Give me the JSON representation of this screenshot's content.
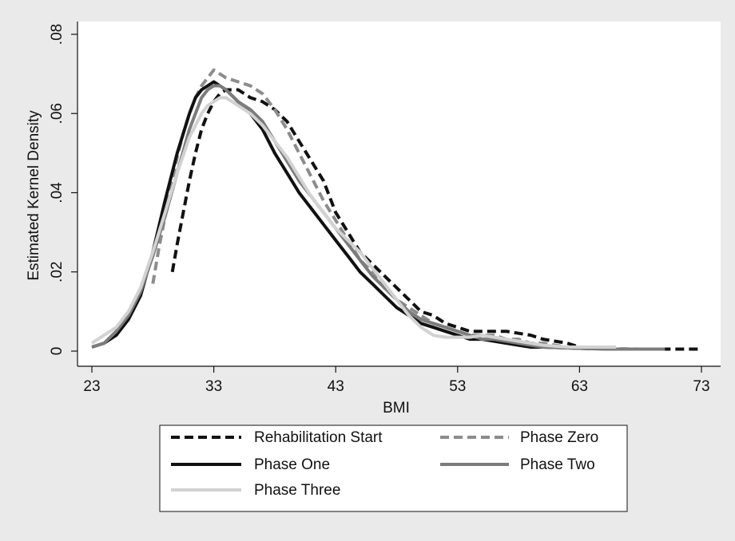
{
  "chart_data": {
    "type": "line",
    "title": "",
    "xlabel": "BMI",
    "ylabel": "Estimated Kernel Density",
    "xlim": [
      23,
      73
    ],
    "ylim": [
      0,
      0.08
    ],
    "xticks": [
      {
        "value": 23,
        "label": "23"
      },
      {
        "value": 33,
        "label": "33"
      },
      {
        "value": 43,
        "label": "43"
      },
      {
        "value": 53,
        "label": "53"
      },
      {
        "value": 63,
        "label": "63"
      },
      {
        "value": 73,
        "label": "73"
      }
    ],
    "yticks": [
      {
        "value": 0,
        "label": "0"
      },
      {
        "value": 0.02,
        "label": ".02"
      },
      {
        "value": 0.04,
        "label": ".04"
      },
      {
        "value": 0.06,
        "label": ".06"
      },
      {
        "value": 0.08,
        "label": ".08"
      }
    ],
    "grid": false,
    "legend_position": "bottom",
    "series": [
      {
        "name": "Rehabilitation Start",
        "color": "#111111",
        "dash": "dashed",
        "points": [
          [
            29.6,
            0.02
          ],
          [
            30.0,
            0.027
          ],
          [
            30.5,
            0.035
          ],
          [
            31.0,
            0.043
          ],
          [
            31.5,
            0.05
          ],
          [
            32.0,
            0.056
          ],
          [
            32.5,
            0.06
          ],
          [
            33.0,
            0.063
          ],
          [
            33.5,
            0.065
          ],
          [
            34.0,
            0.066
          ],
          [
            34.5,
            0.066
          ],
          [
            35.0,
            0.066
          ],
          [
            35.5,
            0.065
          ],
          [
            36.0,
            0.064
          ],
          [
            37.0,
            0.063
          ],
          [
            38.0,
            0.061
          ],
          [
            39.0,
            0.058
          ],
          [
            40.0,
            0.053
          ],
          [
            41.0,
            0.048
          ],
          [
            42.0,
            0.043
          ],
          [
            43.0,
            0.035
          ],
          [
            44.0,
            0.03
          ],
          [
            45.0,
            0.025
          ],
          [
            46.0,
            0.022
          ],
          [
            47.0,
            0.019
          ],
          [
            48.0,
            0.016
          ],
          [
            49.0,
            0.013
          ],
          [
            50.0,
            0.01
          ],
          [
            51.0,
            0.009
          ],
          [
            52.0,
            0.007
          ],
          [
            53.0,
            0.006
          ],
          [
            54.0,
            0.005
          ],
          [
            55.0,
            0.005
          ],
          [
            56.0,
            0.005
          ],
          [
            57.0,
            0.005
          ],
          [
            58.0,
            0.0045
          ],
          [
            59.0,
            0.004
          ],
          [
            60.0,
            0.003
          ],
          [
            61.0,
            0.0025
          ],
          [
            62.0,
            0.002
          ],
          [
            63.0,
            0.001
          ],
          [
            64.0,
            0.001
          ],
          [
            66.0,
            0.0005
          ],
          [
            68.0,
            0.0005
          ],
          [
            70.0,
            0.0005
          ],
          [
            73.0,
            0.0005
          ]
        ]
      },
      {
        "name": "Phase Zero",
        "color": "#8c8c8c",
        "dash": "dashed",
        "points": [
          [
            28.0,
            0.017
          ],
          [
            28.5,
            0.026
          ],
          [
            29.0,
            0.034
          ],
          [
            29.5,
            0.042
          ],
          [
            30.0,
            0.049
          ],
          [
            30.5,
            0.055
          ],
          [
            31.0,
            0.06
          ],
          [
            31.5,
            0.064
          ],
          [
            32.0,
            0.067
          ],
          [
            32.5,
            0.069
          ],
          [
            33.0,
            0.071
          ],
          [
            33.5,
            0.07
          ],
          [
            34.0,
            0.069
          ],
          [
            35.0,
            0.068
          ],
          [
            36.0,
            0.067
          ],
          [
            37.0,
            0.065
          ],
          [
            38.0,
            0.061
          ],
          [
            39.0,
            0.056
          ],
          [
            40.0,
            0.05
          ],
          [
            41.0,
            0.044
          ],
          [
            42.0,
            0.038
          ],
          [
            43.0,
            0.033
          ],
          [
            44.0,
            0.028
          ],
          [
            45.0,
            0.023
          ],
          [
            46.0,
            0.02
          ],
          [
            47.0,
            0.016
          ],
          [
            48.0,
            0.013
          ],
          [
            49.0,
            0.011
          ],
          [
            50.0,
            0.009
          ],
          [
            51.0,
            0.007
          ],
          [
            52.0,
            0.006
          ],
          [
            53.0,
            0.005
          ],
          [
            54.0,
            0.004
          ],
          [
            55.0,
            0.004
          ],
          [
            56.0,
            0.004
          ],
          [
            57.0,
            0.003
          ],
          [
            58.0,
            0.003
          ],
          [
            59.0,
            0.002
          ],
          [
            60.0,
            0.002
          ],
          [
            62.0,
            0.001
          ],
          [
            64.0,
            0.0008
          ],
          [
            66.0,
            0.0006
          ],
          [
            68.0,
            0.0005
          ],
          [
            70.0,
            0.0005
          ]
        ]
      },
      {
        "name": "Phase One",
        "color": "#111111",
        "dash": "solid",
        "points": [
          [
            23.0,
            0.001
          ],
          [
            24.0,
            0.002
          ],
          [
            25.0,
            0.004
          ],
          [
            26.0,
            0.008
          ],
          [
            27.0,
            0.014
          ],
          [
            28.0,
            0.025
          ],
          [
            29.0,
            0.038
          ],
          [
            30.0,
            0.05
          ],
          [
            31.0,
            0.06
          ],
          [
            31.5,
            0.064
          ],
          [
            32.0,
            0.066
          ],
          [
            32.5,
            0.067
          ],
          [
            33.0,
            0.068
          ],
          [
            33.5,
            0.067
          ],
          [
            34.0,
            0.066
          ],
          [
            35.0,
            0.063
          ],
          [
            36.0,
            0.06
          ],
          [
            37.0,
            0.056
          ],
          [
            38.0,
            0.05
          ],
          [
            39.0,
            0.045
          ],
          [
            40.0,
            0.04
          ],
          [
            41.0,
            0.036
          ],
          [
            42.0,
            0.032
          ],
          [
            43.0,
            0.028
          ],
          [
            44.0,
            0.024
          ],
          [
            45.0,
            0.02
          ],
          [
            46.0,
            0.017
          ],
          [
            47.0,
            0.014
          ],
          [
            48.0,
            0.011
          ],
          [
            49.0,
            0.009
          ],
          [
            50.0,
            0.007
          ],
          [
            51.0,
            0.006
          ],
          [
            52.0,
            0.005
          ],
          [
            53.0,
            0.004
          ],
          [
            54.0,
            0.003
          ],
          [
            55.0,
            0.003
          ],
          [
            56.0,
            0.0025
          ],
          [
            57.0,
            0.002
          ],
          [
            58.0,
            0.0015
          ],
          [
            59.0,
            0.001
          ],
          [
            60.0,
            0.001
          ],
          [
            62.0,
            0.0008
          ],
          [
            64.0,
            0.0006
          ],
          [
            66.0,
            0.0005
          ],
          [
            68.0,
            0.0005
          ],
          [
            70.0,
            0.0005
          ]
        ]
      },
      {
        "name": "Phase Two",
        "color": "#7c7c7c",
        "dash": "solid",
        "points": [
          [
            23.0,
            0.001
          ],
          [
            24.0,
            0.002
          ],
          [
            25.0,
            0.005
          ],
          [
            26.0,
            0.009
          ],
          [
            27.0,
            0.015
          ],
          [
            28.0,
            0.024
          ],
          [
            29.0,
            0.034
          ],
          [
            30.0,
            0.045
          ],
          [
            31.0,
            0.056
          ],
          [
            32.0,
            0.064
          ],
          [
            32.5,
            0.066
          ],
          [
            33.0,
            0.067
          ],
          [
            33.5,
            0.067
          ],
          [
            34.0,
            0.066
          ],
          [
            35.0,
            0.063
          ],
          [
            36.0,
            0.061
          ],
          [
            37.0,
            0.058
          ],
          [
            38.0,
            0.053
          ],
          [
            39.0,
            0.048
          ],
          [
            40.0,
            0.043
          ],
          [
            41.0,
            0.039
          ],
          [
            42.0,
            0.035
          ],
          [
            43.0,
            0.031
          ],
          [
            44.0,
            0.027
          ],
          [
            45.0,
            0.023
          ],
          [
            46.0,
            0.019
          ],
          [
            47.0,
            0.016
          ],
          [
            48.0,
            0.013
          ],
          [
            49.0,
            0.01
          ],
          [
            50.0,
            0.008
          ],
          [
            51.0,
            0.007
          ],
          [
            52.0,
            0.006
          ],
          [
            53.0,
            0.005
          ],
          [
            54.0,
            0.004
          ],
          [
            55.0,
            0.003
          ],
          [
            56.0,
            0.003
          ],
          [
            57.0,
            0.0025
          ],
          [
            58.0,
            0.002
          ],
          [
            59.0,
            0.0015
          ],
          [
            60.0,
            0.001
          ],
          [
            62.0,
            0.0008
          ],
          [
            64.0,
            0.0006
          ],
          [
            66.0,
            0.0005
          ],
          [
            68.0,
            0.0005
          ],
          [
            70.0,
            0.0005
          ]
        ]
      },
      {
        "name": "Phase Three",
        "color": "#d2d2d2",
        "dash": "solid",
        "points": [
          [
            23.0,
            0.002
          ],
          [
            24.0,
            0.004
          ],
          [
            25.0,
            0.006
          ],
          [
            26.0,
            0.01
          ],
          [
            27.0,
            0.016
          ],
          [
            28.0,
            0.025
          ],
          [
            29.0,
            0.035
          ],
          [
            30.0,
            0.045
          ],
          [
            31.0,
            0.054
          ],
          [
            32.0,
            0.06
          ],
          [
            32.5,
            0.062
          ],
          [
            33.0,
            0.063
          ],
          [
            33.5,
            0.064
          ],
          [
            34.0,
            0.064
          ],
          [
            35.0,
            0.062
          ],
          [
            36.0,
            0.06
          ],
          [
            37.0,
            0.057
          ],
          [
            38.0,
            0.053
          ],
          [
            39.0,
            0.049
          ],
          [
            40.0,
            0.044
          ],
          [
            41.0,
            0.039
          ],
          [
            42.0,
            0.035
          ],
          [
            43.0,
            0.031
          ],
          [
            44.0,
            0.028
          ],
          [
            45.0,
            0.025
          ],
          [
            46.0,
            0.021
          ],
          [
            47.0,
            0.017
          ],
          [
            48.0,
            0.013
          ],
          [
            49.0,
            0.009
          ],
          [
            50.0,
            0.006
          ],
          [
            51.0,
            0.004
          ],
          [
            52.0,
            0.0035
          ],
          [
            53.0,
            0.0035
          ],
          [
            54.0,
            0.0035
          ],
          [
            55.0,
            0.004
          ],
          [
            56.0,
            0.0035
          ],
          [
            57.0,
            0.003
          ],
          [
            58.0,
            0.0025
          ],
          [
            59.0,
            0.002
          ],
          [
            60.0,
            0.0015
          ],
          [
            62.0,
            0.001
          ],
          [
            64.0,
            0.001
          ],
          [
            66.0,
            0.001
          ]
        ]
      }
    ]
  }
}
